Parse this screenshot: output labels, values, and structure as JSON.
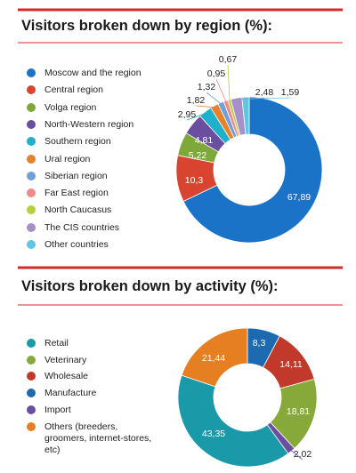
{
  "chart_data": [
    {
      "type": "donut",
      "title": "Visitors broken down by region (%):",
      "categories": [
        "Moscow and the region",
        "Central region",
        "Volga region",
        "North-Western region",
        "Southern region",
        "Ural region",
        "Siberian region",
        "Far East region",
        "North Caucasus",
        "The CIS countries",
        "Other countries"
      ],
      "values": [
        67.89,
        10.3,
        5.22,
        4.81,
        2.95,
        1.82,
        1.32,
        0.95,
        0.67,
        2.48,
        1.59
      ],
      "value_labels": [
        "67,89",
        "10,3",
        "5,22",
        "4,81",
        "2,95",
        "1,82",
        "1,32",
        "0,95",
        "0,67",
        "2,48",
        "1,59"
      ],
      "colors": [
        "#1a73c7",
        "#d94430",
        "#7fa83a",
        "#6a4fa0",
        "#1fb0cc",
        "#e8812a",
        "#6fa0d8",
        "#f08a8a",
        "#b8cf3a",
        "#a78fc9",
        "#5ec8e0"
      ]
    },
    {
      "type": "donut",
      "title": "Visitors broken down by activity (%):",
      "categories": [
        "Retail",
        "Veterinary",
        "Wholesale",
        "Manufacture",
        "Import",
        "Others (breeders, groomers, internet-stores, etc)"
      ],
      "values": [
        43.35,
        18.81,
        14.11,
        8.3,
        2.02,
        21.44
      ],
      "value_labels": [
        "43,35",
        "18,81",
        "14,11",
        "8,3",
        "2,02",
        "21,44"
      ],
      "colors": [
        "#1a9aa8",
        "#86a93a",
        "#c0392b",
        "#1c6bb0",
        "#6a4fa0",
        "#e67e22"
      ]
    }
  ]
}
